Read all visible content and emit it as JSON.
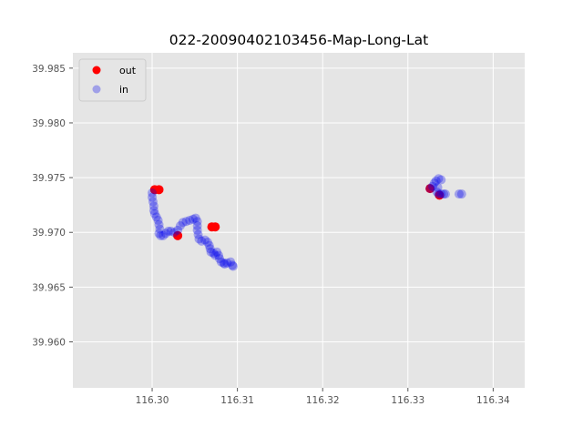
{
  "chart_data": {
    "type": "scatter",
    "title": "022-20090402103456-Map-Long-Lat",
    "xlabel": "",
    "ylabel": "",
    "xlim": [
      116.2907,
      116.3437
    ],
    "ylim": [
      39.9558,
      39.9864
    ],
    "grid": true,
    "legend_placement": "top-left",
    "x_ticks": [
      "116.30",
      "116.31",
      "116.32",
      "116.33",
      "116.34"
    ],
    "x_tick_values": [
      116.3,
      116.31,
      116.32,
      116.33,
      116.34
    ],
    "y_ticks": [
      "39.960",
      "39.965",
      "39.970",
      "39.975",
      "39.980",
      "39.985"
    ],
    "y_tick_values": [
      39.96,
      39.965,
      39.97,
      39.975,
      39.98,
      39.985
    ],
    "series": [
      {
        "name": "out",
        "color": "#ff0000",
        "alpha": 1.0,
        "points": [
          [
            116.3003,
            39.9739
          ],
          [
            116.3008,
            39.9739
          ],
          [
            116.303,
            39.9697
          ],
          [
            116.307,
            39.9705
          ],
          [
            116.3074,
            39.9705
          ],
          [
            116.3326,
            39.974
          ],
          [
            116.3337,
            39.9734
          ]
        ]
      },
      {
        "name": "in",
        "color": "#0000ee",
        "alpha": 0.3,
        "points": [
          [
            116.3,
            39.9736
          ],
          [
            116.3,
            39.9732
          ],
          [
            116.3001,
            39.9728
          ],
          [
            116.3002,
            39.9724
          ],
          [
            116.3002,
            39.972
          ],
          [
            116.3003,
            39.9717
          ],
          [
            116.3005,
            39.9714
          ],
          [
            116.3007,
            39.9711
          ],
          [
            116.3008,
            39.9707
          ],
          [
            116.3009,
            39.9703
          ],
          [
            116.3008,
            39.9699
          ],
          [
            116.301,
            39.9697
          ],
          [
            116.3013,
            39.9697
          ],
          [
            116.3016,
            39.9699
          ],
          [
            116.3019,
            39.9701
          ],
          [
            116.3022,
            39.9701
          ],
          [
            116.3026,
            39.97
          ],
          [
            116.303,
            39.9702
          ],
          [
            116.3033,
            39.9706
          ],
          [
            116.3036,
            39.9709
          ],
          [
            116.304,
            39.971
          ],
          [
            116.3044,
            39.9711
          ],
          [
            116.3048,
            39.9712
          ],
          [
            116.3051,
            39.9713
          ],
          [
            116.3053,
            39.971
          ],
          [
            116.3053,
            39.9706
          ],
          [
            116.3053,
            39.9702
          ],
          [
            116.3054,
            39.9698
          ],
          [
            116.3055,
            39.9694
          ],
          [
            116.3058,
            39.9692
          ],
          [
            116.3062,
            39.9693
          ],
          [
            116.3065,
            39.9691
          ],
          [
            116.3067,
            39.9688
          ],
          [
            116.3068,
            39.9685
          ],
          [
            116.3069,
            39.9682
          ],
          [
            116.3072,
            39.9681
          ],
          [
            116.3076,
            39.9682
          ],
          [
            116.3078,
            39.9679
          ],
          [
            116.3079,
            39.9676
          ],
          [
            116.3081,
            39.9673
          ],
          [
            116.3084,
            39.9672
          ],
          [
            116.3088,
            39.9672
          ],
          [
            116.3092,
            39.9673
          ],
          [
            116.3094,
            39.967
          ],
          [
            116.3095,
            39.9669
          ],
          [
            116.3074,
            39.9679
          ],
          [
            116.3085,
            39.9671
          ],
          [
            116.3326,
            39.974
          ],
          [
            116.3329,
            39.9742
          ],
          [
            116.3331,
            39.9745
          ],
          [
            116.3333,
            39.9747
          ],
          [
            116.3336,
            39.9749
          ],
          [
            116.3339,
            39.9748
          ],
          [
            116.3335,
            39.9741
          ],
          [
            116.3334,
            39.9737
          ],
          [
            116.3336,
            39.9735
          ],
          [
            116.3339,
            39.9735
          ],
          [
            116.3342,
            39.9735
          ],
          [
            116.3344,
            39.9735
          ],
          [
            116.336,
            39.9735
          ],
          [
            116.3363,
            39.9735
          ]
        ]
      }
    ]
  }
}
